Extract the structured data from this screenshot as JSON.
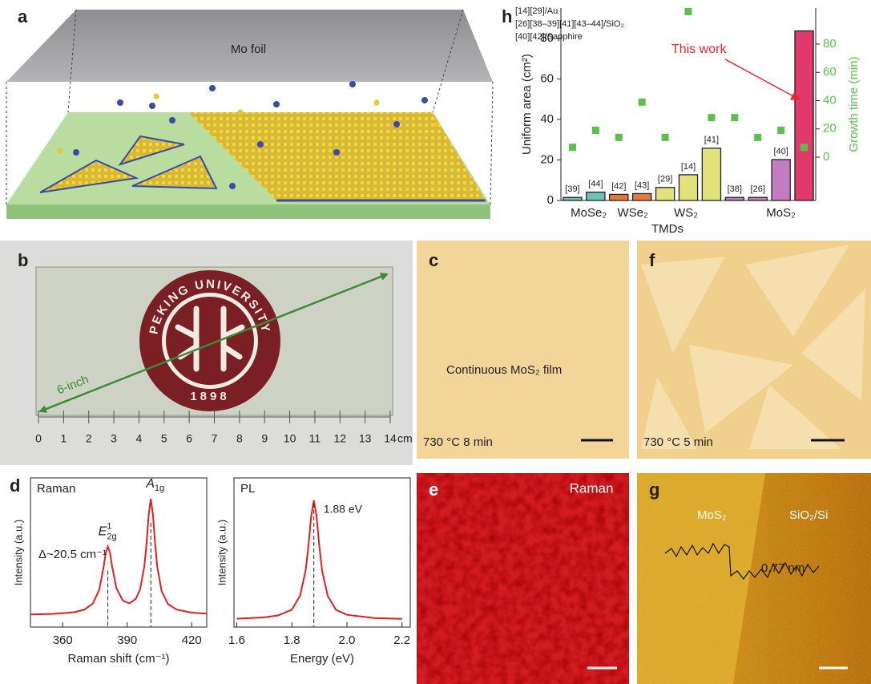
{
  "panel_labels": {
    "a": "a",
    "b": "b",
    "c": "c",
    "d": "d",
    "e": "e",
    "f": "f",
    "g": "g",
    "h": "h"
  },
  "schematic": {
    "foil": "Mo foil"
  },
  "wafer": {
    "logo_ring": "PEKING UNIVERSITY",
    "logo_year": "1898",
    "diagonal": "6-inch",
    "ruler": {
      "ticks": [
        0,
        1,
        2,
        3,
        4,
        5,
        6,
        7,
        8,
        9,
        10,
        11,
        12,
        13,
        14
      ],
      "unit": "cm"
    }
  },
  "optical": {
    "c": {
      "caption": "Continuous MoS₂ film",
      "condition": "730 °C 8 min"
    },
    "f": {
      "condition": "730 °C 5 min"
    }
  },
  "raman_map": {
    "title": "Raman"
  },
  "afm": {
    "left": "MoS₂",
    "right": "SiO₂/Si",
    "step": "0.77 nm"
  },
  "chart_data": [
    {
      "type": "bar",
      "categories": [
        "[39]",
        "[44]",
        "[42]",
        "[43]",
        "[29]",
        "[14]",
        "[41]",
        "[38]",
        "[26]",
        "[40]",
        null
      ],
      "groups": [
        "MoSe₂",
        "WSe₂",
        "WS₂",
        "MoS₂"
      ],
      "series": [
        {
          "values": [
            1.5,
            4.1,
            3,
            3.4,
            6.4,
            12.7,
            25.8,
            1.5,
            1.5,
            20.2,
            83.7
          ],
          "colors": [
            "#6cc4b8",
            "#6cc4b8",
            "#e6783c",
            "#e6783c",
            "#e2e27c",
            "#e2e27c",
            "#e2e27c",
            "#c47cc0",
            "#c47cc0",
            "#c47cc0",
            "#e23a6c"
          ]
        },
        {
          "type": "scatter",
          "axis": "y2",
          "color": "#5cbf4a",
          "values": [
            7,
            19,
            14,
            39,
            14,
            103,
            28,
            28,
            14,
            19,
            7
          ]
        }
      ],
      "xlabel": "TMDs",
      "ylabel": "Uniform area (cm²)",
      "y2label": "Growth time (min)",
      "ylim": [
        0,
        95
      ],
      "yticks": [
        0,
        20,
        40,
        60,
        80
      ],
      "y2lim": [
        -30.6,
        105.5
      ],
      "y2ticks": [
        0,
        20,
        40,
        60,
        80
      ],
      "legend_lines": [
        "[14][29]/Au",
        "[26][38–39][41][43–44]/SiO₂",
        "[40][42]/Sapphire"
      ],
      "annotation": "This work",
      "annotation_color": "#e8252e"
    },
    {
      "type": "line",
      "label": "Raman",
      "x": [
        345,
        355,
        365,
        370,
        374,
        377,
        379,
        380,
        381,
        382,
        383,
        385,
        388,
        391,
        394,
        396,
        398,
        399,
        400,
        401,
        402,
        403,
        404,
        406,
        409,
        413,
        420,
        427
      ],
      "values": [
        0.085,
        0.088,
        0.099,
        0.116,
        0.157,
        0.25,
        0.4,
        0.496,
        0.54,
        0.498,
        0.405,
        0.26,
        0.177,
        0.159,
        0.189,
        0.251,
        0.409,
        0.562,
        0.755,
        0.86,
        0.753,
        0.559,
        0.404,
        0.241,
        0.154,
        0.117,
        0.097,
        0.09
      ],
      "color": "#e02020",
      "xlim": [
        345,
        427
      ],
      "ylim": [
        0,
        1
      ],
      "xticks": [
        360,
        390,
        420
      ],
      "xlabel": "Raman shift (cm⁻¹)",
      "ylabel": "Intensity (a.u.)",
      "peaks": [
        381,
        401
      ],
      "peak_labels": [
        {
          "base": "E",
          "sub": "2g",
          "sup": "1"
        },
        {
          "base": "A",
          "sub": "1g"
        }
      ],
      "shift_label": "Δ~20.5 cm⁻¹"
    },
    {
      "type": "line",
      "label": "PL",
      "x": [
        1.6,
        1.7,
        1.75,
        1.8,
        1.83,
        1.85,
        1.86,
        1.87,
        1.88,
        1.89,
        1.9,
        1.91,
        1.93,
        1.96,
        2.0,
        2.1,
        2.2
      ],
      "values": [
        0.056,
        0.065,
        0.078,
        0.116,
        0.21,
        0.378,
        0.538,
        0.74,
        0.85,
        0.74,
        0.538,
        0.378,
        0.21,
        0.116,
        0.082,
        0.06,
        0.055
      ],
      "color": "#e02020",
      "xlim": [
        1.59,
        2.23
      ],
      "ylim": [
        0,
        1
      ],
      "xticks": [
        1.6,
        1.8,
        {
          "value": 2,
          "label": "2.0"
        },
        2.2
      ],
      "xlabel": "Energy (eV)",
      "ylabel": "Intensity (a.u.)",
      "peak": {
        "value": 1.88,
        "label": "1.88 eV"
      }
    }
  ]
}
